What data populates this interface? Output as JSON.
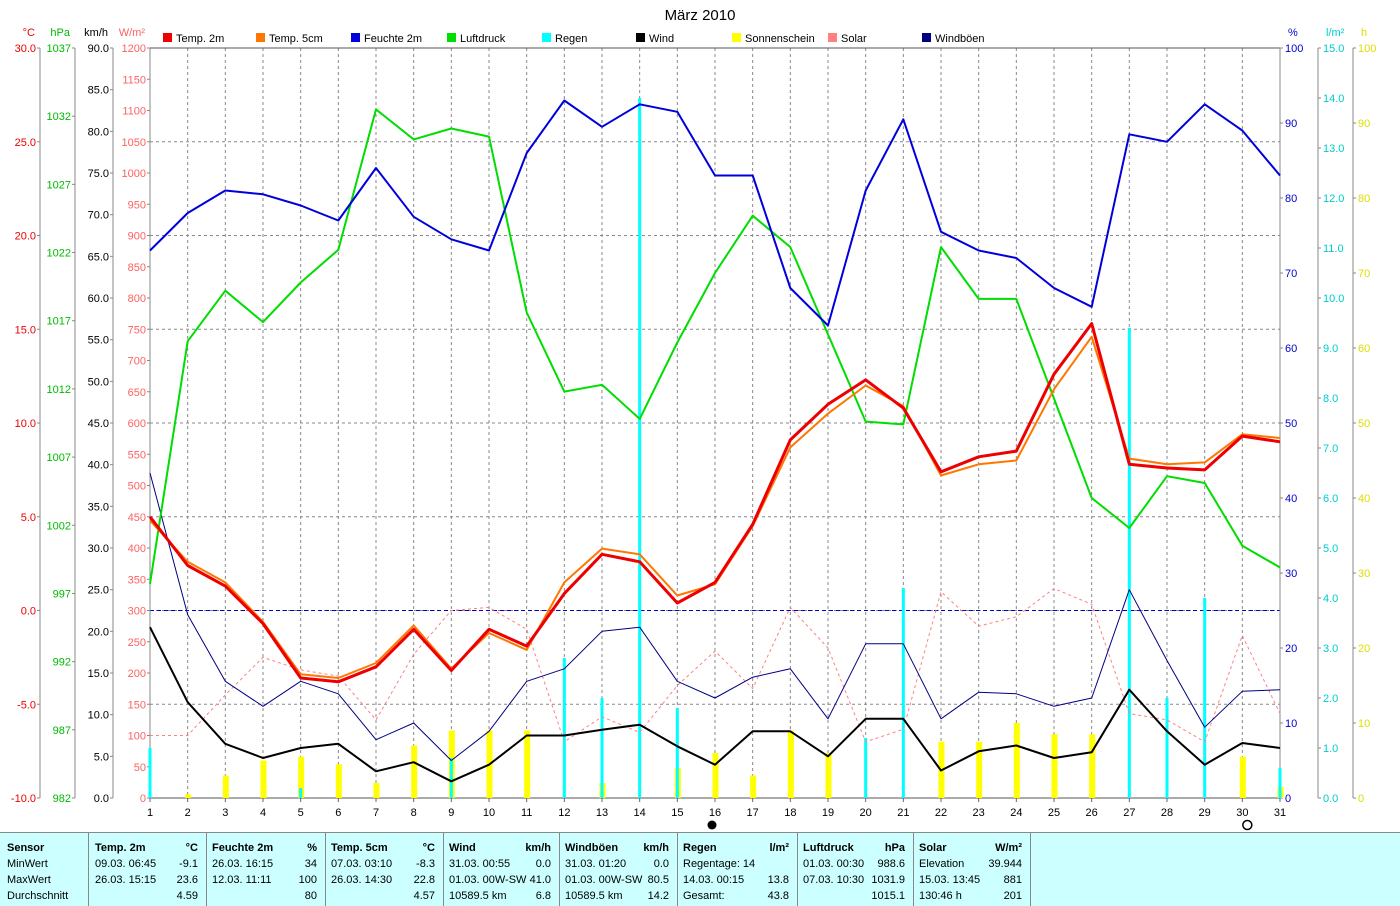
{
  "title": "März 2010",
  "legend": [
    {
      "label": "Temp. 2m",
      "color": "#ee0000"
    },
    {
      "label": "Temp. 5cm",
      "color": "#ff7700"
    },
    {
      "label": "Feuchte 2m",
      "color": "#0000dd"
    },
    {
      "label": "Luftdruck",
      "color": "#00dd00"
    },
    {
      "label": "Regen",
      "color": "#00ffff"
    },
    {
      "label": "Wind",
      "color": "#000000"
    },
    {
      "label": "Sonnenschein",
      "color": "#ffff00"
    },
    {
      "label": "Solar",
      "color": "#ff8080"
    },
    {
      "label": "Windböen",
      "color": "#000080"
    }
  ],
  "axes_left": [
    {
      "unit": "°C",
      "color": "#ee0000",
      "ticks": [
        "30.0",
        "25.0",
        "20.0",
        "15.0",
        "10.0",
        "5.0",
        "0.0",
        "-5.0",
        "-10.0"
      ]
    },
    {
      "unit": "hPa",
      "color": "#00bb00",
      "ticks": [
        "1037",
        "1032",
        "1027",
        "1022",
        "1017",
        "1012",
        "1007",
        "1002",
        "997",
        "992",
        "987",
        "982"
      ]
    },
    {
      "unit": "km/h",
      "color": "#000000",
      "ticks": [
        "90.0",
        "85.0",
        "80.0",
        "75.0",
        "70.0",
        "65.0",
        "60.0",
        "55.0",
        "50.0",
        "45.0",
        "40.0",
        "35.0",
        "30.0",
        "25.0",
        "20.0",
        "15.0",
        "10.0",
        "5.0",
        "0.0"
      ]
    },
    {
      "unit": "W/m²",
      "color": "#ff6060",
      "ticks": [
        "1200",
        "1150",
        "1100",
        "1050",
        "1000",
        "950",
        "900",
        "850",
        "800",
        "750",
        "700",
        "650",
        "600",
        "550",
        "500",
        "450",
        "400",
        "350",
        "300",
        "250",
        "200",
        "150",
        "100",
        "50",
        "0"
      ]
    }
  ],
  "axes_right": [
    {
      "unit": "%",
      "color": "#0000cc",
      "ticks": [
        "100",
        "90",
        "80",
        "70",
        "60",
        "50",
        "40",
        "30",
        "20",
        "10",
        "0"
      ]
    },
    {
      "unit": "l/m²",
      "color": "#00cccc",
      "ticks": [
        "15.0",
        "14.0",
        "13.0",
        "12.0",
        "11.0",
        "10.0",
        "9.0",
        "8.0",
        "7.0",
        "6.0",
        "5.0",
        "4.0",
        "3.0",
        "2.0",
        "1.0",
        "0.0"
      ]
    },
    {
      "unit": "h",
      "color": "#dddd00",
      "ticks": [
        "100",
        "90",
        "80",
        "70",
        "60",
        "50",
        "40",
        "30",
        "20",
        "10",
        "0"
      ]
    }
  ],
  "chart_data": {
    "type": "line",
    "title": "März 2010",
    "x": [
      1,
      2,
      3,
      4,
      5,
      6,
      7,
      8,
      9,
      10,
      11,
      12,
      13,
      14,
      15,
      16,
      17,
      18,
      19,
      20,
      21,
      22,
      23,
      24,
      25,
      26,
      27,
      28,
      29,
      30,
      31
    ],
    "series": [
      {
        "name": "Temp. 2m",
        "unit": "°C",
        "values": [
          5.0,
          2.4,
          1.3,
          -0.7,
          -3.6,
          -3.8,
          -3.0,
          -1.0,
          -3.2,
          -1.0,
          -1.9,
          0.9,
          3.0,
          2.6,
          0.4,
          1.5,
          4.6,
          9.1,
          11.0,
          12.3,
          10.8,
          7.4,
          8.2,
          8.5,
          12.6,
          15.3,
          7.8,
          7.6,
          7.5,
          9.3,
          9.0
        ]
      },
      {
        "name": "Temp. 5cm",
        "unit": "°C",
        "values": [
          4.8,
          2.6,
          1.5,
          -0.6,
          -3.4,
          -3.6,
          -2.8,
          -0.8,
          -3.1,
          -1.2,
          -2.1,
          1.5,
          3.3,
          3.0,
          0.8,
          1.4,
          4.5,
          8.7,
          10.5,
          12.0,
          10.9,
          7.2,
          7.8,
          8.0,
          11.8,
          14.6,
          8.1,
          7.8,
          7.9,
          9.4,
          9.2
        ]
      },
      {
        "name": "Feuchte 2m",
        "unit": "%",
        "values": [
          73,
          78,
          81,
          80.5,
          79,
          77,
          84,
          77.5,
          74.5,
          73,
          86,
          93,
          89.5,
          92.5,
          91.5,
          83,
          83,
          68,
          63,
          81,
          90.5,
          75.5,
          73,
          72,
          68,
          65.5,
          88.5,
          87.5,
          92.5,
          89,
          83
        ]
      },
      {
        "name": "Luftdruck",
        "unit": "hPa",
        "values": [
          997.7,
          1015.5,
          1019.2,
          1016.9,
          1019.8,
          1022.2,
          1032.5,
          1030.3,
          1031.1,
          1030.5,
          1017.6,
          1011.8,
          1012.3,
          1009.8,
          1015.4,
          1020.5,
          1024.7,
          1022.4,
          1016.0,
          1009.6,
          1009.4,
          1022.4,
          1018.6,
          1018.6,
          1011.3,
          1004.0,
          1001.8,
          1005.6,
          1005.1,
          1000.5,
          998.9
        ]
      },
      {
        "name": "Wind",
        "unit": "km/h",
        "values": [
          20.5,
          11.5,
          6.5,
          4.8,
          6.0,
          6.5,
          3.2,
          4.3,
          2.0,
          4.0,
          7.5,
          7.5,
          8.2,
          8.8,
          6.2,
          4.0,
          8.0,
          8.0,
          5.0,
          9.5,
          9.5,
          3.3,
          5.6,
          6.3,
          4.8,
          5.5,
          13.0,
          8.0,
          4.0,
          6.6,
          6.0
        ]
      },
      {
        "name": "Windböen",
        "unit": "km/h",
        "values": [
          39.0,
          22.0,
          14.0,
          11.0,
          14.0,
          12.5,
          7.0,
          9.0,
          4.5,
          8.0,
          14.0,
          15.5,
          20.0,
          20.5,
          14.0,
          12.0,
          14.5,
          15.5,
          9.5,
          18.5,
          18.5,
          9.5,
          12.7,
          12.5,
          11.0,
          12.0,
          25.0,
          16.5,
          8.5,
          12.8,
          13.0
        ]
      },
      {
        "name": "Solar",
        "unit": "W/m²",
        "values": [
          100,
          100,
          165,
          225,
          205,
          195,
          125,
          230,
          300,
          305,
          270,
          90,
          130,
          105,
          180,
          235,
          175,
          305,
          240,
          90,
          110,
          330,
          275,
          290,
          335,
          310,
          135,
          125,
          90,
          260,
          135
        ]
      },
      {
        "name": "Regen",
        "unit": "l/m²",
        "values": [
          1.0,
          0,
          0,
          0,
          0.2,
          0,
          0,
          0,
          0.8,
          0,
          0,
          2.8,
          2.0,
          14.0,
          1.8,
          0,
          0,
          0,
          0,
          1.2,
          4.2,
          0,
          0,
          0,
          0,
          0,
          9.4,
          2.0,
          4.0,
          0,
          0.6
        ]
      },
      {
        "name": "Sonnenschein",
        "unit": "h",
        "values": [
          0,
          0.5,
          3,
          5,
          5.5,
          4.5,
          2,
          7,
          9,
          9,
          9,
          0,
          2,
          0,
          4,
          6,
          3,
          9,
          6,
          0,
          0,
          7.5,
          7.5,
          10,
          8.5,
          8.5,
          0,
          0,
          0,
          5.5,
          1.5
        ]
      }
    ],
    "xlim": [
      1,
      31
    ],
    "grid": true,
    "legend_position": "top"
  },
  "stats": {
    "row_labels": [
      "Sensor",
      "MinWert",
      "MaxWert",
      "Durchschnitt"
    ],
    "columns": [
      {
        "name": "Temp. 2m",
        "unit": "°C",
        "rows": [
          [
            "09.03.  06:45",
            "-9.1"
          ],
          [
            "26.03.  15:15",
            "23.6"
          ],
          [
            "",
            "4.59"
          ]
        ]
      },
      {
        "name": "Feuchte 2m",
        "unit": "%",
        "rows": [
          [
            "26.03.  16:15",
            "34"
          ],
          [
            "12.03.  11:11",
            "100"
          ],
          [
            "",
            "80"
          ]
        ]
      },
      {
        "name": "Temp. 5cm",
        "unit": "°C",
        "rows": [
          [
            "07.03.  03:10",
            "-8.3"
          ],
          [
            "26.03.  14:30",
            "22.8"
          ],
          [
            "",
            "4.57"
          ]
        ]
      },
      {
        "name": "Wind",
        "unit": "km/h",
        "rows": [
          [
            "31.03.  00:55",
            "0.0"
          ],
          [
            "01.03.  00W-SW",
            "41.0"
          ],
          [
            "10589.5 km",
            "6.8"
          ]
        ]
      },
      {
        "name": "Windböen",
        "unit": "km/h",
        "rows": [
          [
            "31.03.  01:20",
            "0.0"
          ],
          [
            "01.03.  00W-SW",
            "80.5"
          ],
          [
            "10589.5 km",
            "14.2"
          ]
        ]
      },
      {
        "name": "Regen",
        "unit": "l/m²",
        "rows": [
          [
            "Regentage: 14",
            ""
          ],
          [
            "14.03.  00:15",
            "13.8"
          ],
          [
            "Gesamt:",
            "43.8"
          ]
        ]
      },
      {
        "name": "Luftdruck",
        "unit": "hPa",
        "rows": [
          [
            "01.03.  00:30",
            "988.6"
          ],
          [
            "07.03.  10:30",
            "1031.9"
          ],
          [
            "",
            "1015.1"
          ]
        ]
      },
      {
        "name": "Solar",
        "unit": "W/m²",
        "rows": [
          [
            "Elevation",
            "39.944"
          ],
          [
            "15.03.  13:45",
            "881"
          ],
          [
            "130:46 h",
            "201"
          ]
        ]
      }
    ]
  }
}
